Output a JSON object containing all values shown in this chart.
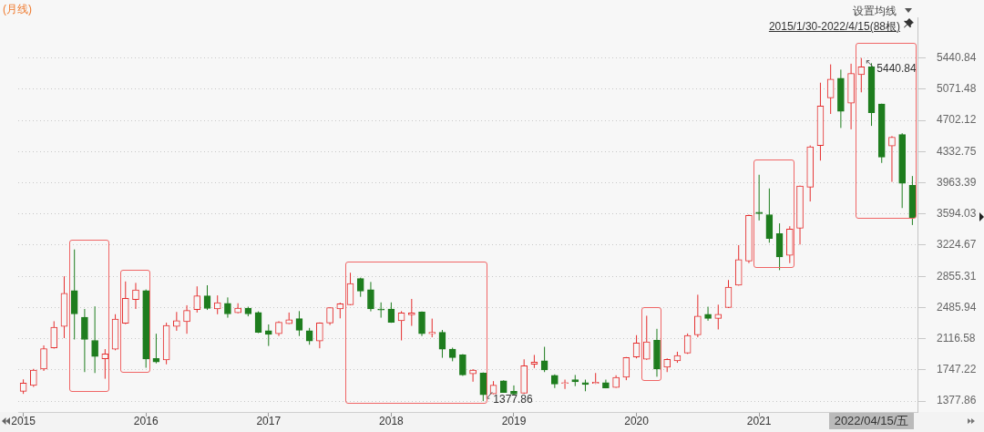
{
  "chart_data": {
    "type": "candlestick",
    "title": "(月线)",
    "categories": [
      "2015",
      null,
      null,
      null,
      null,
      null,
      null,
      null,
      null,
      null,
      null,
      null,
      "2016",
      null,
      null,
      null,
      null,
      null,
      null,
      null,
      null,
      null,
      null,
      null,
      "2017",
      null,
      null,
      null,
      null,
      null,
      null,
      null,
      null,
      null,
      null,
      null,
      "2018",
      null,
      null,
      null,
      null,
      null,
      null,
      null,
      null,
      null,
      null,
      null,
      "2019",
      null,
      null,
      null,
      null,
      null,
      null,
      null,
      null,
      null,
      null,
      null,
      "2020",
      null,
      null,
      null,
      null,
      null,
      null,
      null,
      null,
      null,
      null,
      null,
      "2021",
      null,
      null,
      null,
      null,
      null,
      null,
      null,
      null,
      null,
      null,
      null,
      null,
      null,
      null,
      null
    ],
    "ohlc": [
      [
        1494,
        1636,
        1464,
        1592
      ],
      [
        1564,
        1760,
        1546,
        1746
      ],
      [
        1757,
        2038,
        1736,
        2000
      ],
      [
        2010,
        2324,
        2000,
        2252
      ],
      [
        2262,
        2857,
        2124,
        2654
      ],
      [
        2688,
        3174,
        2108,
        2410
      ],
      [
        2372,
        2469,
        1722,
        2108
      ],
      [
        2097,
        2500,
        1711,
        1907
      ],
      [
        1880,
        1994,
        1643,
        1938
      ],
      [
        1994,
        2407,
        1980,
        2351
      ],
      [
        2299,
        2795,
        2289,
        2596
      ],
      [
        2582,
        2778,
        2469,
        2696
      ],
      [
        2688,
        2700,
        1773,
        1876
      ],
      [
        1884,
        2176,
        1825,
        1842
      ],
      [
        1866,
        2307,
        1814,
        2273
      ],
      [
        2262,
        2434,
        2211,
        2330
      ],
      [
        2320,
        2513,
        2176,
        2451
      ],
      [
        2462,
        2737,
        2427,
        2624
      ],
      [
        2624,
        2750,
        2458,
        2475
      ],
      [
        2469,
        2630,
        2407,
        2544
      ],
      [
        2537,
        2606,
        2366,
        2410
      ],
      [
        2423,
        2537,
        2417,
        2479
      ],
      [
        2479,
        2496,
        2382,
        2410
      ],
      [
        2427,
        2441,
        2183,
        2193
      ],
      [
        2211,
        2286,
        2031,
        2169
      ],
      [
        2176,
        2324,
        2149,
        2312
      ],
      [
        2296,
        2427,
        2290,
        2341
      ],
      [
        2355,
        2444,
        2149,
        2217
      ],
      [
        2211,
        2245,
        2046,
        2090
      ],
      [
        2090,
        2310,
        2004,
        2304
      ],
      [
        2304,
        2490,
        2279,
        2485
      ],
      [
        2469,
        2544,
        2358,
        2531
      ],
      [
        2520,
        2898,
        2515,
        2771
      ],
      [
        2830,
        2840,
        2613,
        2681
      ],
      [
        2699,
        2789,
        2441,
        2469
      ],
      [
        2469,
        2547,
        2366,
        2458
      ],
      [
        2469,
        2547,
        2305,
        2312
      ],
      [
        2330,
        2444,
        2097,
        2423
      ],
      [
        2400,
        2588,
        2269,
        2423
      ],
      [
        2434,
        2440,
        2149,
        2176
      ],
      [
        2176,
        2355,
        2134,
        2193
      ],
      [
        2193,
        2221,
        1891,
        1994
      ],
      [
        1994,
        2011,
        1850,
        1894
      ],
      [
        1925,
        1935,
        1677,
        1688
      ],
      [
        1701,
        1757,
        1608,
        1746
      ],
      [
        1711,
        1718,
        1377.86,
        1453
      ],
      [
        1464,
        1615,
        1460,
        1567
      ],
      [
        1618,
        1625,
        1478,
        1481
      ],
      [
        1495,
        1564,
        1455,
        1460
      ],
      [
        1471,
        1873,
        1465,
        1798
      ],
      [
        1814,
        1925,
        1770,
        1839
      ],
      [
        1856,
        2021,
        1722,
        1746
      ],
      [
        1684,
        1695,
        1533,
        1581
      ],
      [
        1587,
        1633,
        1522,
        1598
      ],
      [
        1633,
        1688,
        1556,
        1608
      ],
      [
        1598,
        1633,
        1495,
        1574
      ],
      [
        1587,
        1711,
        1581,
        1602
      ],
      [
        1598,
        1633,
        1530,
        1533
      ],
      [
        1540,
        1684,
        1535,
        1660
      ],
      [
        1660,
        1900,
        1626,
        1894
      ],
      [
        1901,
        2159,
        1884,
        2066
      ],
      [
        1873,
        2389,
        1866,
        2080
      ],
      [
        2100,
        2234,
        1667,
        1757
      ],
      [
        1780,
        1884,
        1722,
        1873
      ],
      [
        1856,
        1963,
        1832,
        1918
      ],
      [
        1948,
        2179,
        1937,
        2155
      ],
      [
        2162,
        2638,
        2134,
        2386
      ],
      [
        2407,
        2496,
        2330,
        2358
      ],
      [
        2358,
        2520,
        2227,
        2407
      ],
      [
        2485,
        2812,
        2480,
        2727
      ],
      [
        2750,
        3225,
        2745,
        3053
      ],
      [
        3036,
        3586,
        3012,
        3576
      ],
      [
        3614,
        4058,
        3517,
        3597
      ],
      [
        3586,
        3896,
        3253,
        3305
      ],
      [
        3362,
        3483,
        2929,
        3084
      ],
      [
        3104,
        3449,
        3012,
        3414
      ],
      [
        3424,
        3930,
        3232,
        3924
      ],
      [
        3912,
        4405,
        3742,
        4389
      ],
      [
        4405,
        5148,
        4226,
        4871
      ],
      [
        4969,
        5365,
        4778,
        5189
      ],
      [
        5200,
        5303,
        4612,
        4809
      ],
      [
        4906,
        5373,
        4596,
        5259
      ],
      [
        5244,
        5440.84,
        5034,
        5337
      ],
      [
        5337,
        5379,
        4637,
        4793
      ],
      [
        4896,
        4900,
        4198,
        4267
      ],
      [
        4399,
        4516,
        3974,
        4503
      ],
      [
        4534,
        4550,
        3664,
        3957
      ],
      [
        3933,
        4043,
        3463,
        3553
      ]
    ],
    "colors": [
      "#e52e2e",
      "#e52e2e",
      "#e52e2e",
      "#e52e2e",
      "#e52e2e",
      "#1e7d1e",
      "#1e7d1e",
      "#1e7d1e",
      "#e52e2e",
      "#e52e2e",
      "#e52e2e",
      "#e52e2e",
      "#1e7d1e",
      "#1e7d1e",
      "#e52e2e",
      "#e52e2e",
      "#e52e2e",
      "#e52e2e",
      "#1e7d1e",
      "#e52e2e",
      "#1e7d1e",
      "#e52e2e",
      "#1e7d1e",
      "#1e7d1e",
      "#1e7d1e",
      "#e52e2e",
      "#e52e2e",
      "#1e7d1e",
      "#1e7d1e",
      "#e52e2e",
      "#e52e2e",
      "#e52e2e",
      "#e52e2e",
      "#1e7d1e",
      "#1e7d1e",
      "#1e7d1e",
      "#1e7d1e",
      "#e52e2e",
      "#e52e2e",
      "#1e7d1e",
      "#e52e2e",
      "#1e7d1e",
      "#1e7d1e",
      "#1e7d1e",
      "#e52e2e",
      "#1e7d1e",
      "#e52e2e",
      "#1e7d1e",
      "#1e7d1e",
      "#e52e2e",
      "#e52e2e",
      "#1e7d1e",
      "#1e7d1e",
      "#e52e2e",
      "#1e7d1e",
      "#1e7d1e",
      "#e52e2e",
      "#1e7d1e",
      "#e52e2e",
      "#e52e2e",
      "#e52e2e",
      "#e52e2e",
      "#1e7d1e",
      "#e52e2e",
      "#e52e2e",
      "#e52e2e",
      "#e52e2e",
      "#1e7d1e",
      "#e52e2e",
      "#e52e2e",
      "#e52e2e",
      "#e52e2e",
      "#1e7d1e",
      "#1e7d1e",
      "#1e7d1e",
      "#e52e2e",
      "#e52e2e",
      "#e52e2e",
      "#e52e2e",
      "#e52e2e",
      "#1e7d1e",
      "#e52e2e",
      "#e52e2e",
      "#1e7d1e",
      "#1e7d1e",
      "#e52e2e",
      "#1e7d1e",
      "#1e7d1e"
    ],
    "ylim": [
      1250,
      5920
    ],
    "yticks": [
      1377.86,
      1747.22,
      2116.58,
      2485.94,
      2855.31,
      3224.67,
      3594.03,
      3963.39,
      4332.75,
      4702.12,
      5071.48,
      5440.84
    ],
    "grid": "y",
    "annotations": [
      "设置均线",
      "2015/1/30-2022/4/15(88根)",
      "5440.84",
      "1377.86",
      "2022/04/15/五"
    ]
  }
}
